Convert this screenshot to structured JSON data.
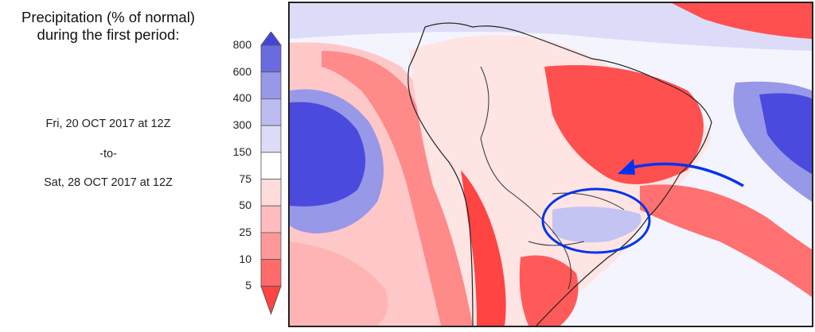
{
  "title_line1": "Precipitation (% of normal)",
  "title_line2": "during the first period:",
  "period": {
    "start": "Fri, 20 OCT 2017 at 12Z",
    "separator": "-to-",
    "end": "Sat, 28 OCT 2017 at 12Z"
  },
  "legend": {
    "ticks": [
      "800",
      "600",
      "400",
      "300",
      "150",
      "75",
      "50",
      "25",
      "10",
      "5"
    ],
    "colors": [
      "#4444dd",
      "#6b6be0",
      "#9898e8",
      "#bcbcf0",
      "#dcdcf8",
      "#ffffff",
      "#ffdcdc",
      "#ffbcbc",
      "#ff9898",
      "#ff6b6b",
      "#ff4444"
    ]
  },
  "map": {
    "region": "South America",
    "annotation_color": "#0033ee"
  }
}
